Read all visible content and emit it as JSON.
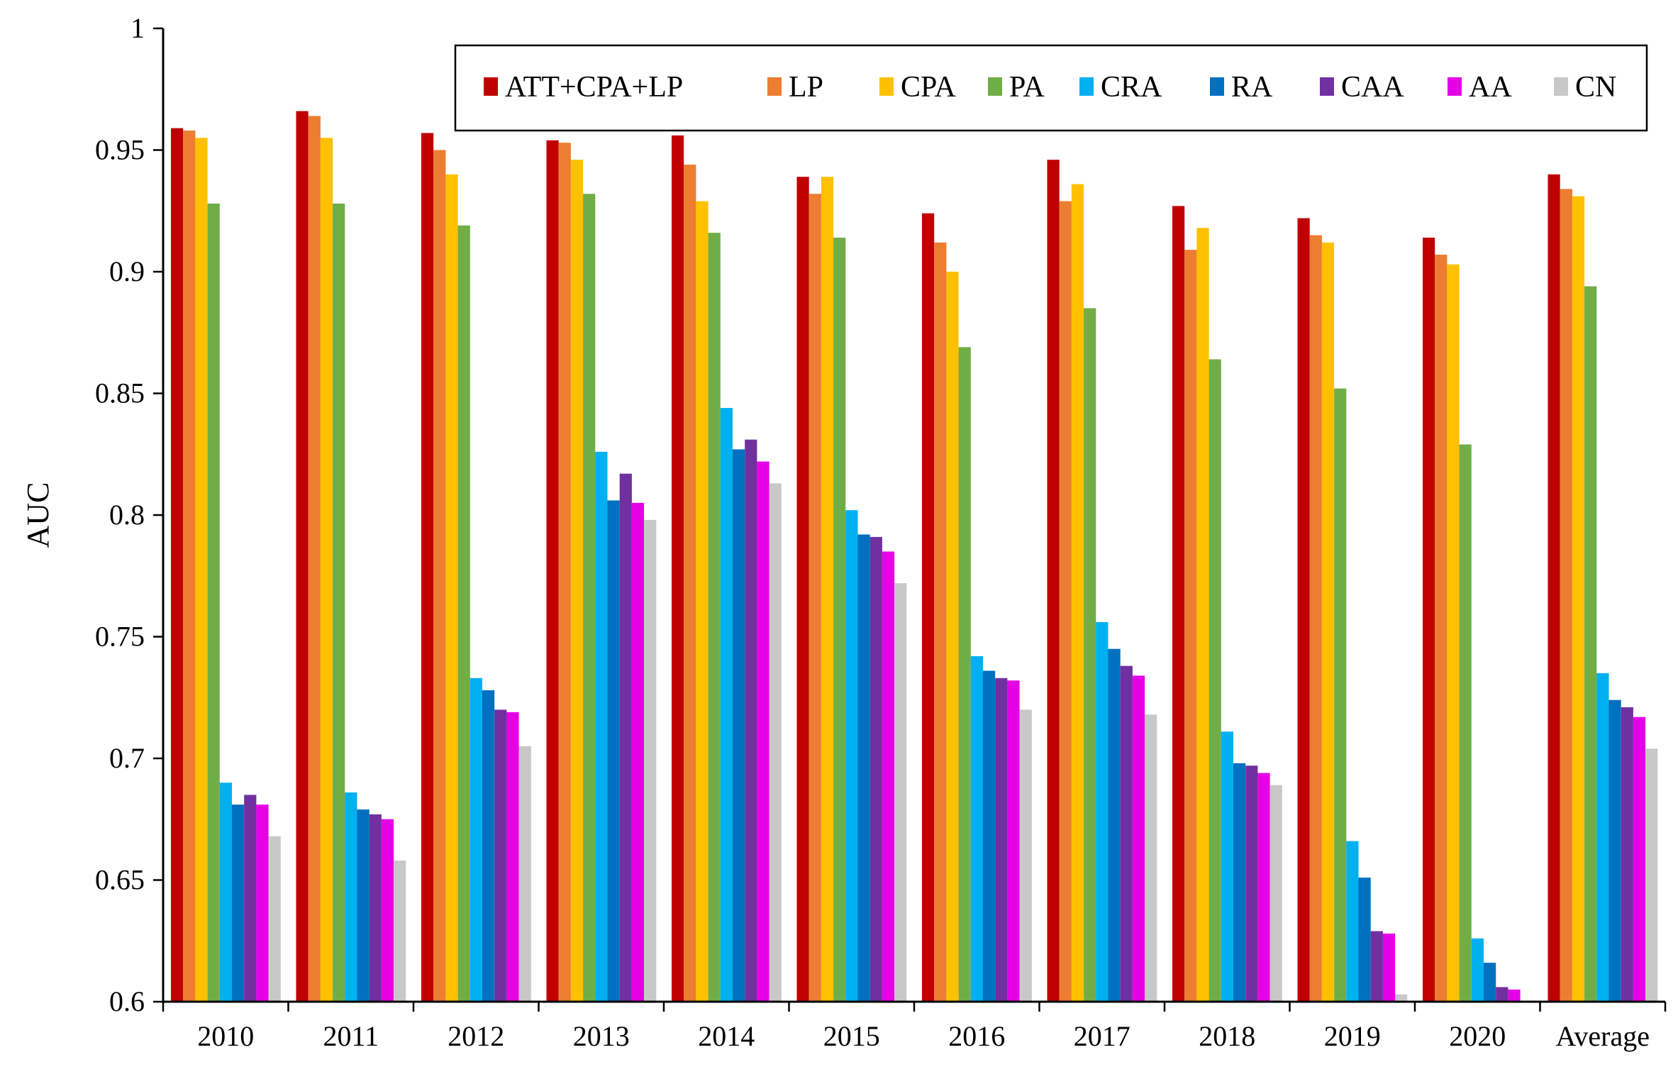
{
  "chart_data": {
    "type": "bar",
    "title": "",
    "xlabel": "",
    "ylabel": "AUC",
    "ylim": [
      0.6,
      1.0
    ],
    "yticks": [
      "0.6",
      "0.65",
      "0.7",
      "0.75",
      "0.8",
      "0.85",
      "0.9",
      "0.95",
      "1"
    ],
    "categories": [
      "2010",
      "2011",
      "2012",
      "2013",
      "2014",
      "2015",
      "2016",
      "2017",
      "2018",
      "2019",
      "2020",
      "Average"
    ],
    "legend_position": "top-right",
    "series": [
      {
        "name": "ATT+CPA+LP",
        "color": "#C00000",
        "values": [
          0.959,
          0.966,
          0.957,
          0.954,
          0.956,
          0.939,
          0.924,
          0.946,
          0.927,
          0.922,
          0.914,
          0.94
        ]
      },
      {
        "name": "LP",
        "color": "#ED7D31",
        "values": [
          0.958,
          0.964,
          0.95,
          0.953,
          0.944,
          0.932,
          0.912,
          0.929,
          0.909,
          0.915,
          0.907,
          0.934
        ]
      },
      {
        "name": "CPA",
        "color": "#FFC000",
        "values": [
          0.955,
          0.955,
          0.94,
          0.946,
          0.929,
          0.939,
          0.9,
          0.936,
          0.918,
          0.912,
          0.903,
          0.931
        ]
      },
      {
        "name": "PA",
        "color": "#70AD47",
        "values": [
          0.928,
          0.928,
          0.919,
          0.932,
          0.916,
          0.914,
          0.869,
          0.885,
          0.864,
          0.852,
          0.829,
          0.894
        ]
      },
      {
        "name": "CRA",
        "color": "#00B0F0",
        "values": [
          0.69,
          0.686,
          0.733,
          0.826,
          0.844,
          0.802,
          0.742,
          0.756,
          0.711,
          0.666,
          0.626,
          0.735
        ]
      },
      {
        "name": "RA",
        "color": "#0070C0",
        "values": [
          0.681,
          0.679,
          0.728,
          0.806,
          0.827,
          0.792,
          0.736,
          0.745,
          0.698,
          0.651,
          0.616,
          0.724
        ]
      },
      {
        "name": "CAA",
        "color": "#7030A0",
        "values": [
          0.685,
          0.677,
          0.72,
          0.817,
          0.831,
          0.791,
          0.733,
          0.738,
          0.697,
          0.629,
          0.606,
          0.721
        ]
      },
      {
        "name": "AA",
        "color": "#E600E6",
        "values": [
          0.681,
          0.675,
          0.719,
          0.805,
          0.822,
          0.785,
          0.732,
          0.734,
          0.694,
          0.628,
          0.605,
          0.717
        ]
      },
      {
        "name": "CN",
        "color": "#C8C8C8",
        "values": [
          0.668,
          0.658,
          0.705,
          0.798,
          0.813,
          0.772,
          0.72,
          0.718,
          0.689,
          0.603,
          0.6,
          0.704
        ]
      }
    ]
  }
}
